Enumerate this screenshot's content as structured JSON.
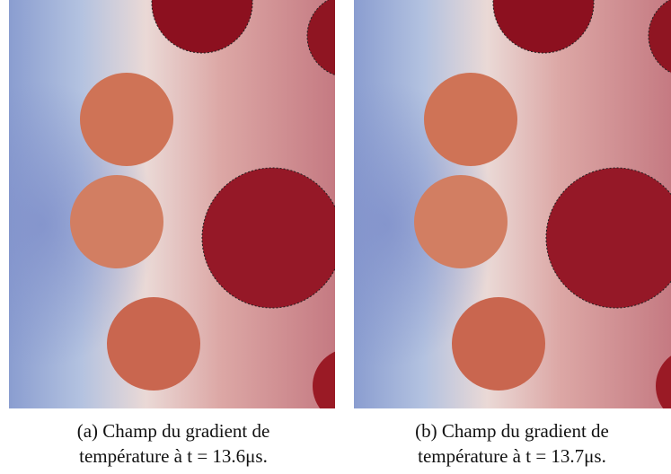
{
  "figures": [
    {
      "caption": "(a) Champ du gradient de température à t = 13.6μs."
    },
    {
      "caption": "(b) Champ du gradient de température à t = 13.7μs."
    }
  ]
}
